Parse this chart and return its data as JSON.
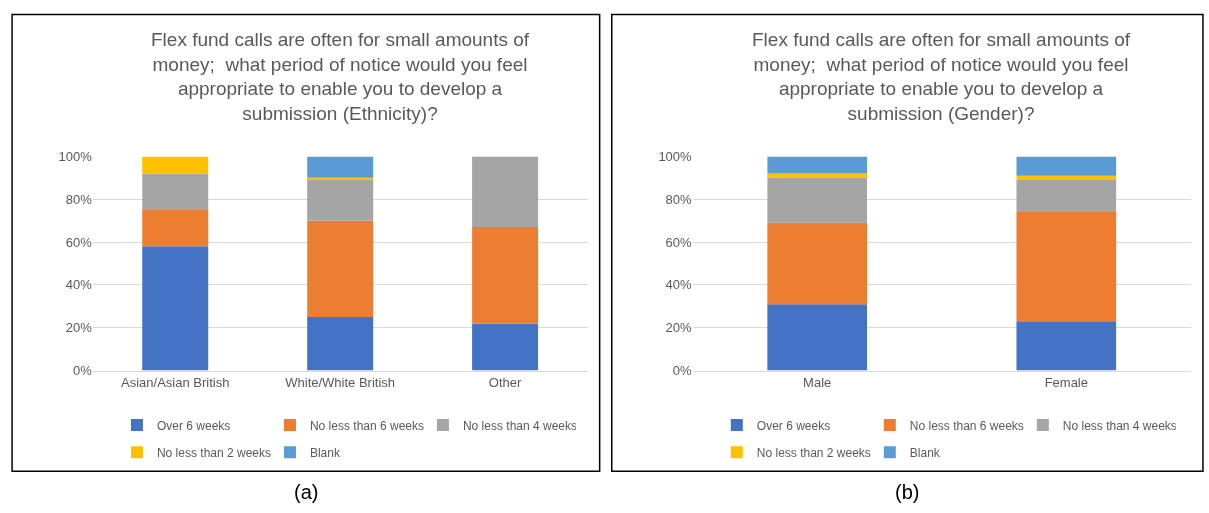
{
  "chart_data": [
    {
      "type": "bar",
      "title": "Flex fund calls are often for small amounts of money;  what period of notice would you feel appropriate to enable you to develop a submission (Ethnicity)?",
      "categories": [
        "Asian/Asian British",
        "White/White British",
        "Other"
      ],
      "stacked": true,
      "ylim": [
        0,
        100
      ],
      "yticks": [
        {
          "value": 0,
          "label": "0%"
        },
        {
          "value": 20,
          "label": "20%"
        },
        {
          "value": 40,
          "label": "40%"
        },
        {
          "value": 60,
          "label": "60%"
        },
        {
          "value": 80,
          "label": "80%"
        },
        {
          "value": 100,
          "label": "100%"
        }
      ],
      "grid": "y",
      "legend": "bottom",
      "annotations": [
        "(a)"
      ],
      "series": [
        {
          "name": "Over 6 weeks",
          "color": "#4472c4",
          "values": [
            58,
            25,
            22
          ]
        },
        {
          "name": "No less than 6 weeks",
          "color": "#ed7d31",
          "values": [
            17,
            45,
            45
          ]
        },
        {
          "name": "No less than 4 weeks",
          "color": "#a5a5a5",
          "values": [
            17,
            19,
            33
          ]
        },
        {
          "name": "No less than 2 weeks",
          "color": "#ffc000",
          "values": [
            8,
            1,
            0
          ]
        },
        {
          "name": "Blank",
          "color": "#5b9bd5",
          "values": [
            0,
            10,
            0
          ]
        }
      ]
    },
    {
      "type": "bar",
      "title": "Flex fund calls are often for small amounts of money;  what period of notice would you feel appropriate to enable you to develop a submission (Gender)?",
      "categories": [
        "Male",
        "Female"
      ],
      "stacked": true,
      "ylim": [
        0,
        100
      ],
      "yticks": [
        {
          "value": 0,
          "label": "0%"
        },
        {
          "value": 20,
          "label": "20%"
        },
        {
          "value": 40,
          "label": "40%"
        },
        {
          "value": 60,
          "label": "60%"
        },
        {
          "value": 80,
          "label": "80%"
        },
        {
          "value": 100,
          "label": "100%"
        }
      ],
      "grid": "y",
      "legend": "bottom",
      "annotations": [
        "(b)"
      ],
      "series": [
        {
          "name": "Over 6 weeks",
          "color": "#4472c4",
          "values": [
            31,
            23
          ]
        },
        {
          "name": "No less than 6 weeks",
          "color": "#ed7d31",
          "values": [
            38,
            51
          ]
        },
        {
          "name": "No less than 4 weeks",
          "color": "#a5a5a5",
          "values": [
            21,
            15
          ]
        },
        {
          "name": "No less than 2 weeks",
          "color": "#ffc000",
          "values": [
            2,
            2
          ]
        },
        {
          "name": "Blank",
          "color": "#5b9bd5",
          "values": [
            8,
            9
          ]
        }
      ]
    }
  ]
}
